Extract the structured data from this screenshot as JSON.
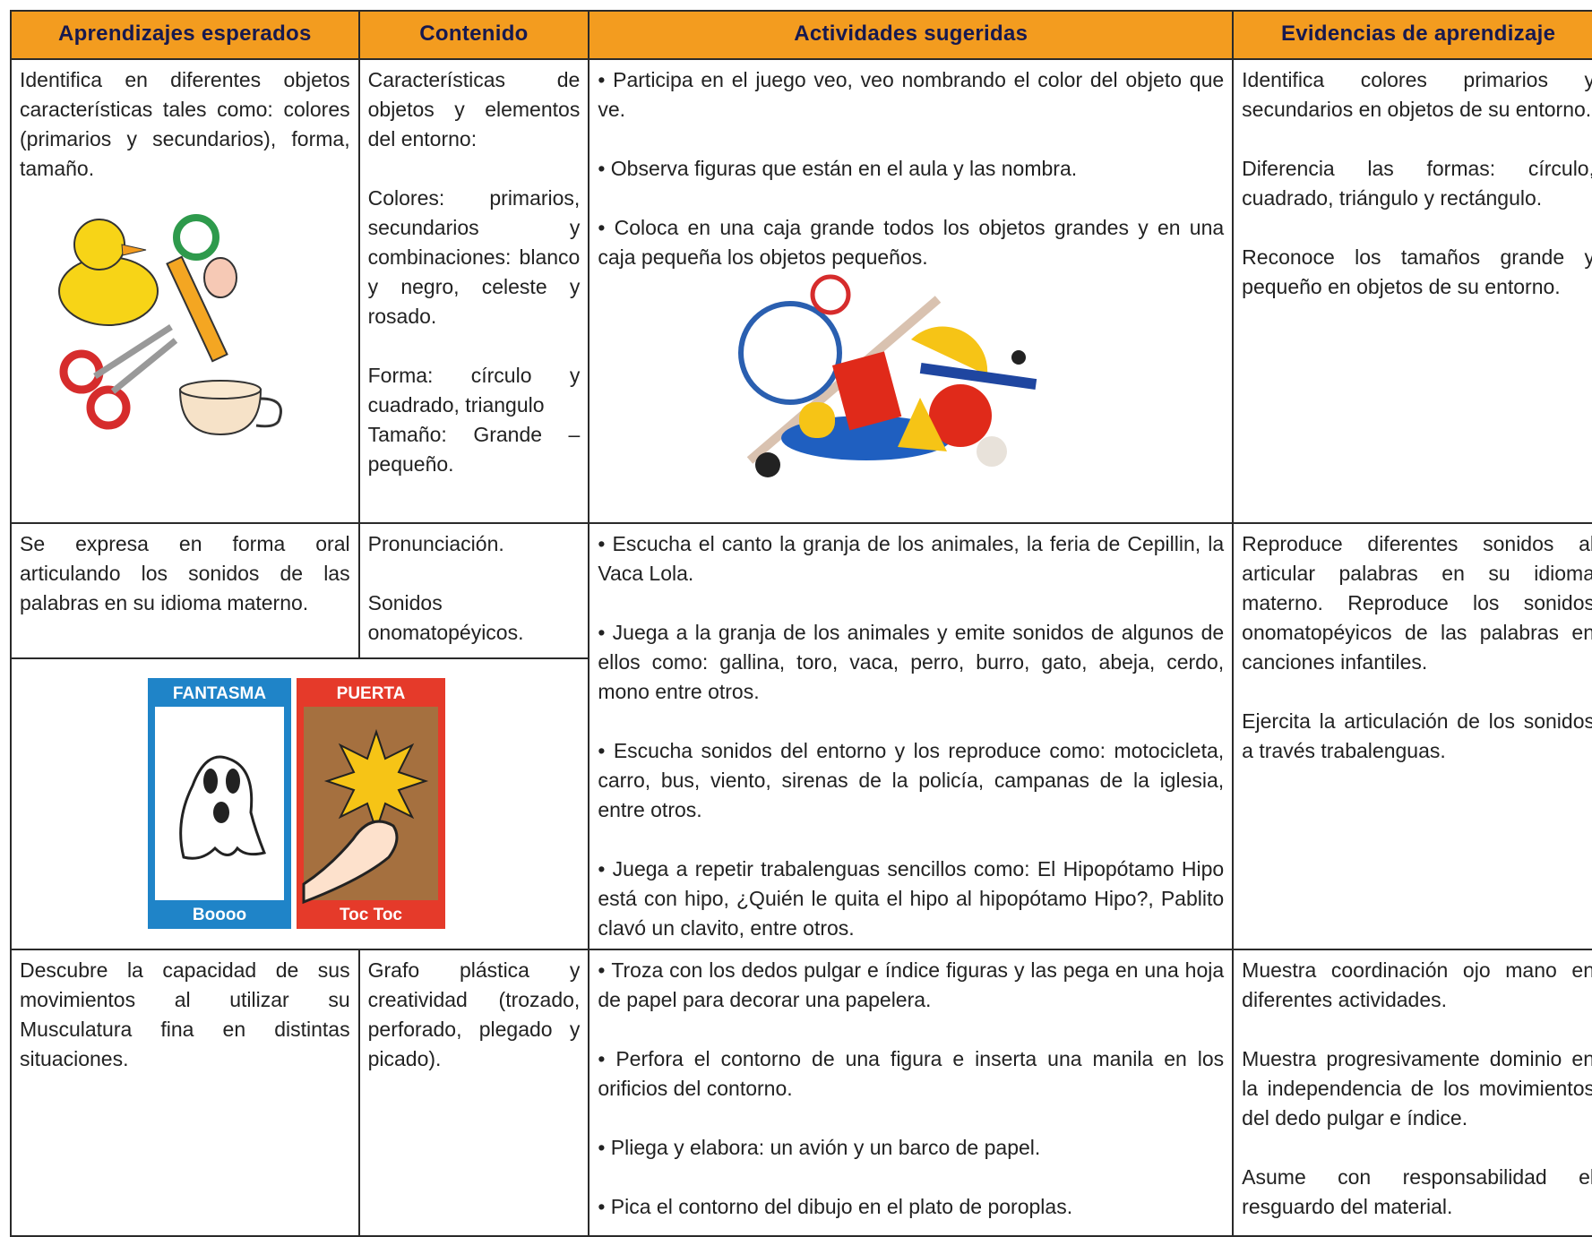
{
  "table": {
    "header": [
      "Aprendizajes esperados",
      "Contenido",
      "Actividades sugeridas",
      "Evidencias de aprendizaje"
    ],
    "rows": [
      {
        "expected": [
          "Identifica en diferentes objetos características tales como: colores (primarios y secundarios), forma, tamaño."
        ],
        "content": [
          "Características de objetos y elementos del entorno:",
          "Colores: primarios, secundarios y combinaciones: blanco y negro, celeste y rosado.",
          "Forma: círculo y cuadrado, triangulo",
          "Tamaño: Grande – pequeño."
        ],
        "activities": [
          "Participa en el juego veo, veo nombrando el color del objeto que ve.",
          "Observa figuras que están en el aula y las nombra.",
          "Coloca en una caja grande todos los objetos grandes y en una caja pequeña los objetos pequeños."
        ],
        "evidence": [
          "Identifica colores primarios y secundarios en objetos de su entorno.",
          "Diferencia las formas: círculo, cuadrado, triángulo y rectángulo.",
          "Reconoce los tamaños grande y pequeño en objetos de su entorno."
        ]
      },
      {
        "expected": [
          "Se expresa en forma oral articulando los sonidos de las palabras en su idioma materno."
        ],
        "content": [
          "Pronunciación.",
          "Sonidos onomatopéyicos."
        ],
        "activities": [
          "Escucha el canto la granja de los animales, la feria de Cepillin, la Vaca Lola.",
          "Juega a la granja de los animales y emite sonidos de algunos de ellos como: gallina, toro, vaca, perro, burro, gato, abeja, cerdo, mono entre otros.",
          "Escucha sonidos del entorno y los reproduce como: motocicleta, carro, bus, viento, sirenas de la policía, campanas de la iglesia, entre otros.",
          "Juega a repetir trabalenguas sencillos como: El Hipopótamo Hipo está con hipo, ¿Quién le quita el hipo al hipopótamo Hipo?, Pablito clavó un clavito, entre otros."
        ],
        "evidence": [
          "Reproduce diferentes sonidos al articular palabras en su idioma materno. Reproduce los sonidos onomatopéyicos de las palabras en canciones infantiles.",
          "Ejercita la articulación de los sonidos a través trabalenguas."
        ]
      },
      {
        "expected": [
          "Descubre la capacidad de sus movimientos al utilizar su Musculatura fina en distintas situaciones."
        ],
        "content": [
          "Grafo plástica y creatividad (trozado, perforado, plegado y picado)."
        ],
        "activities": [
          "Troza con los dedos pulgar e índice figuras y las pega en una hoja de papel para decorar una papelera.",
          "Perfora el contorno de una figura e inserta una manila en los orificios del contorno.",
          "Pliega y elabora: un avión y un barco de papel.",
          "Pica el contorno del dibujo en el plato de poroplas."
        ],
        "evidence": [
          "Muestra coordinación ojo mano en diferentes actividades.",
          "Muestra progresivamente dominio en la independencia de los movimientos del dedo pulgar e índice.",
          "Asume con responsabilidad el resguardo del material."
        ]
      }
    ]
  },
  "cards": [
    {
      "title": "FANTASMA",
      "caption": "Boooo"
    },
    {
      "title": "PUERTA",
      "caption": "Toc Toc"
    }
  ]
}
